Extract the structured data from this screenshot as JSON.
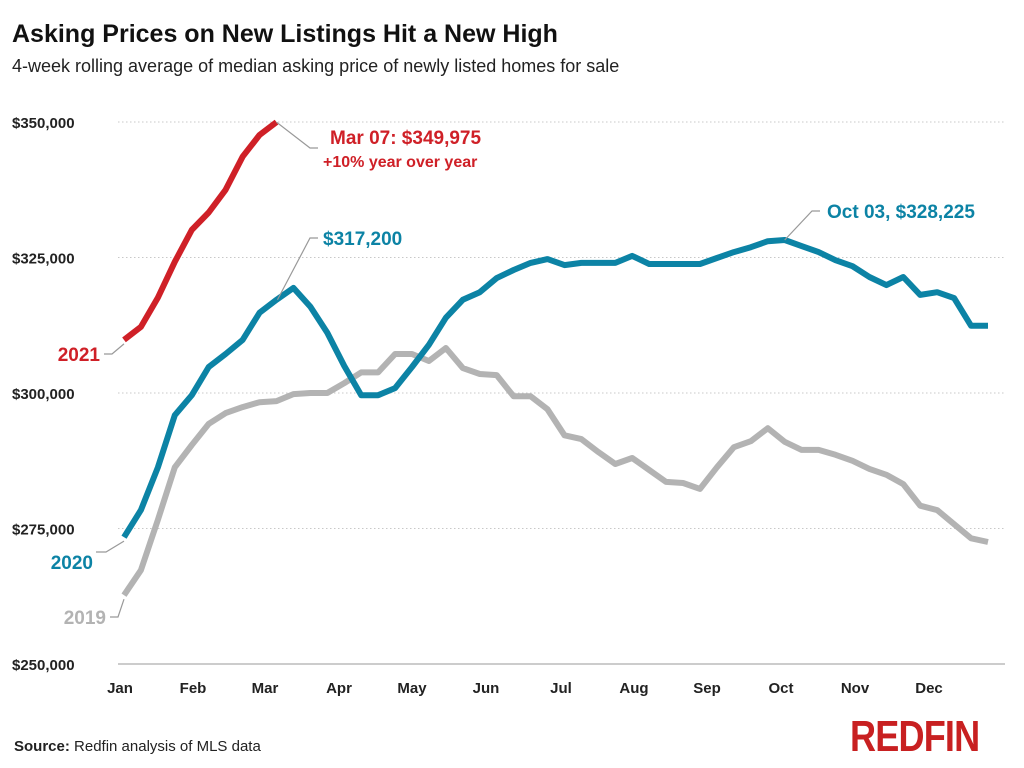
{
  "title": "Asking Prices on New Listings Hit a New High",
  "subtitle": "4-week rolling average of median asking price of newly listed homes for sale",
  "source_label": "Source:",
  "source_text": "Redfin analysis of MLS data",
  "logo": "REDFIN",
  "chart_data": {
    "type": "line",
    "title": "Asking Prices on New Listings Hit a New High",
    "subtitle": "4-week rolling average of median asking price of newly listed homes for sale",
    "xlabel": "",
    "ylabel": "",
    "x_tick_labels": [
      "Jan",
      "Feb",
      "Mar",
      "Apr",
      "May",
      "Jun",
      "Jul",
      "Aug",
      "Sep",
      "Oct",
      "Nov",
      "Dec"
    ],
    "x_interval": "weekly",
    "y_ticks": [
      250000,
      275000,
      300000,
      325000,
      350000
    ],
    "y_tick_labels": [
      "$250,000",
      "$275,000",
      "$300,000",
      "$325,000",
      "$350,000"
    ],
    "ylim": [
      250000,
      350000
    ],
    "grid": "horizontal dotted",
    "legend": "inline labels",
    "series": [
      {
        "name": "2019",
        "color": "#b3b3b3",
        "values": [
          262700,
          267300,
          276600,
          286300,
          290400,
          294300,
          296300,
          297400,
          298300,
          298500,
          299800,
          300000,
          300000,
          301800,
          303800,
          303800,
          307200,
          307200,
          305900,
          308300,
          304600,
          303500,
          303300,
          299400,
          299400,
          297000,
          292200,
          291500,
          289100,
          286900,
          288000,
          285800,
          283600,
          283400,
          282300,
          286300,
          290000,
          291100,
          293500,
          291000,
          289500,
          289500,
          288600,
          287500,
          286000,
          284900,
          283200,
          279200,
          278400,
          275800,
          273200,
          272500
        ]
      },
      {
        "name": "2020",
        "color": "#0c83a5",
        "values": [
          273400,
          278400,
          286300,
          295900,
          299600,
          304800,
          307200,
          309800,
          314800,
          317200,
          319400,
          315900,
          311100,
          305000,
          299600,
          299600,
          300900,
          304800,
          308900,
          313900,
          317200,
          318600,
          321200,
          322700,
          324000,
          324700,
          323600,
          324000,
          324000,
          324000,
          325300,
          323800,
          323800,
          323800,
          323800,
          324900,
          326000,
          326900,
          328000,
          328225,
          327100,
          326000,
          324500,
          323400,
          321400,
          319900,
          321400,
          318100,
          318600,
          317500,
          312400,
          312400
        ]
      },
      {
        "name": "2021",
        "color": "#cf2027",
        "values": [
          309800,
          312200,
          317600,
          324200,
          330100,
          333300,
          337500,
          343600,
          347600,
          349975
        ]
      }
    ],
    "annotations": [
      {
        "series": "2021",
        "text": "Mar 07: $349,975",
        "subtext": "+10% year over year"
      },
      {
        "series": "2020",
        "text": "$317,200"
      },
      {
        "series": "2020",
        "text": "Oct 03, $328,225"
      }
    ]
  }
}
